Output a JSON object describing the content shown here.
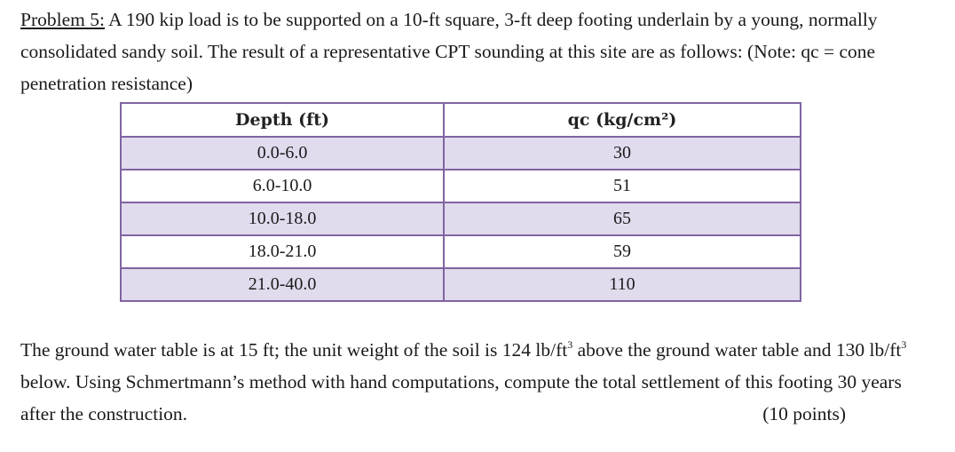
{
  "problem": {
    "label": "Problem 5:",
    "intro_text": " A 190 kip load is to be supported on a 10-ft square, 3-ft deep footing underlain by a young, normally consolidated sandy soil. The result of a representative CPT sounding at this site are as follows: (Note: qc = cone penetration resistance)"
  },
  "table": {
    "headers": {
      "depth": "Depth (ft)",
      "qc": "qc (kg/cm²)"
    },
    "rows": [
      {
        "depth": "0.0-6.0",
        "qc": "30"
      },
      {
        "depth": "6.0-10.0",
        "qc": "51"
      },
      {
        "depth": "10.0-18.0",
        "qc": "65"
      },
      {
        "depth": "18.0-21.0",
        "qc": "59"
      },
      {
        "depth": "21.0-40.0",
        "qc": "110"
      }
    ]
  },
  "closing": {
    "part1": "The ground water table is at 15 ft; the unit weight of the soil is 124 lb/ft",
    "exp1": "3",
    "part2": " above the ground water table and 130 lb/ft",
    "exp2": "3",
    "part3": " below. Using Schmertmann’s method with hand computations, compute the total settlement of this footing 30 years after the construction.",
    "points": "(10 points)"
  }
}
